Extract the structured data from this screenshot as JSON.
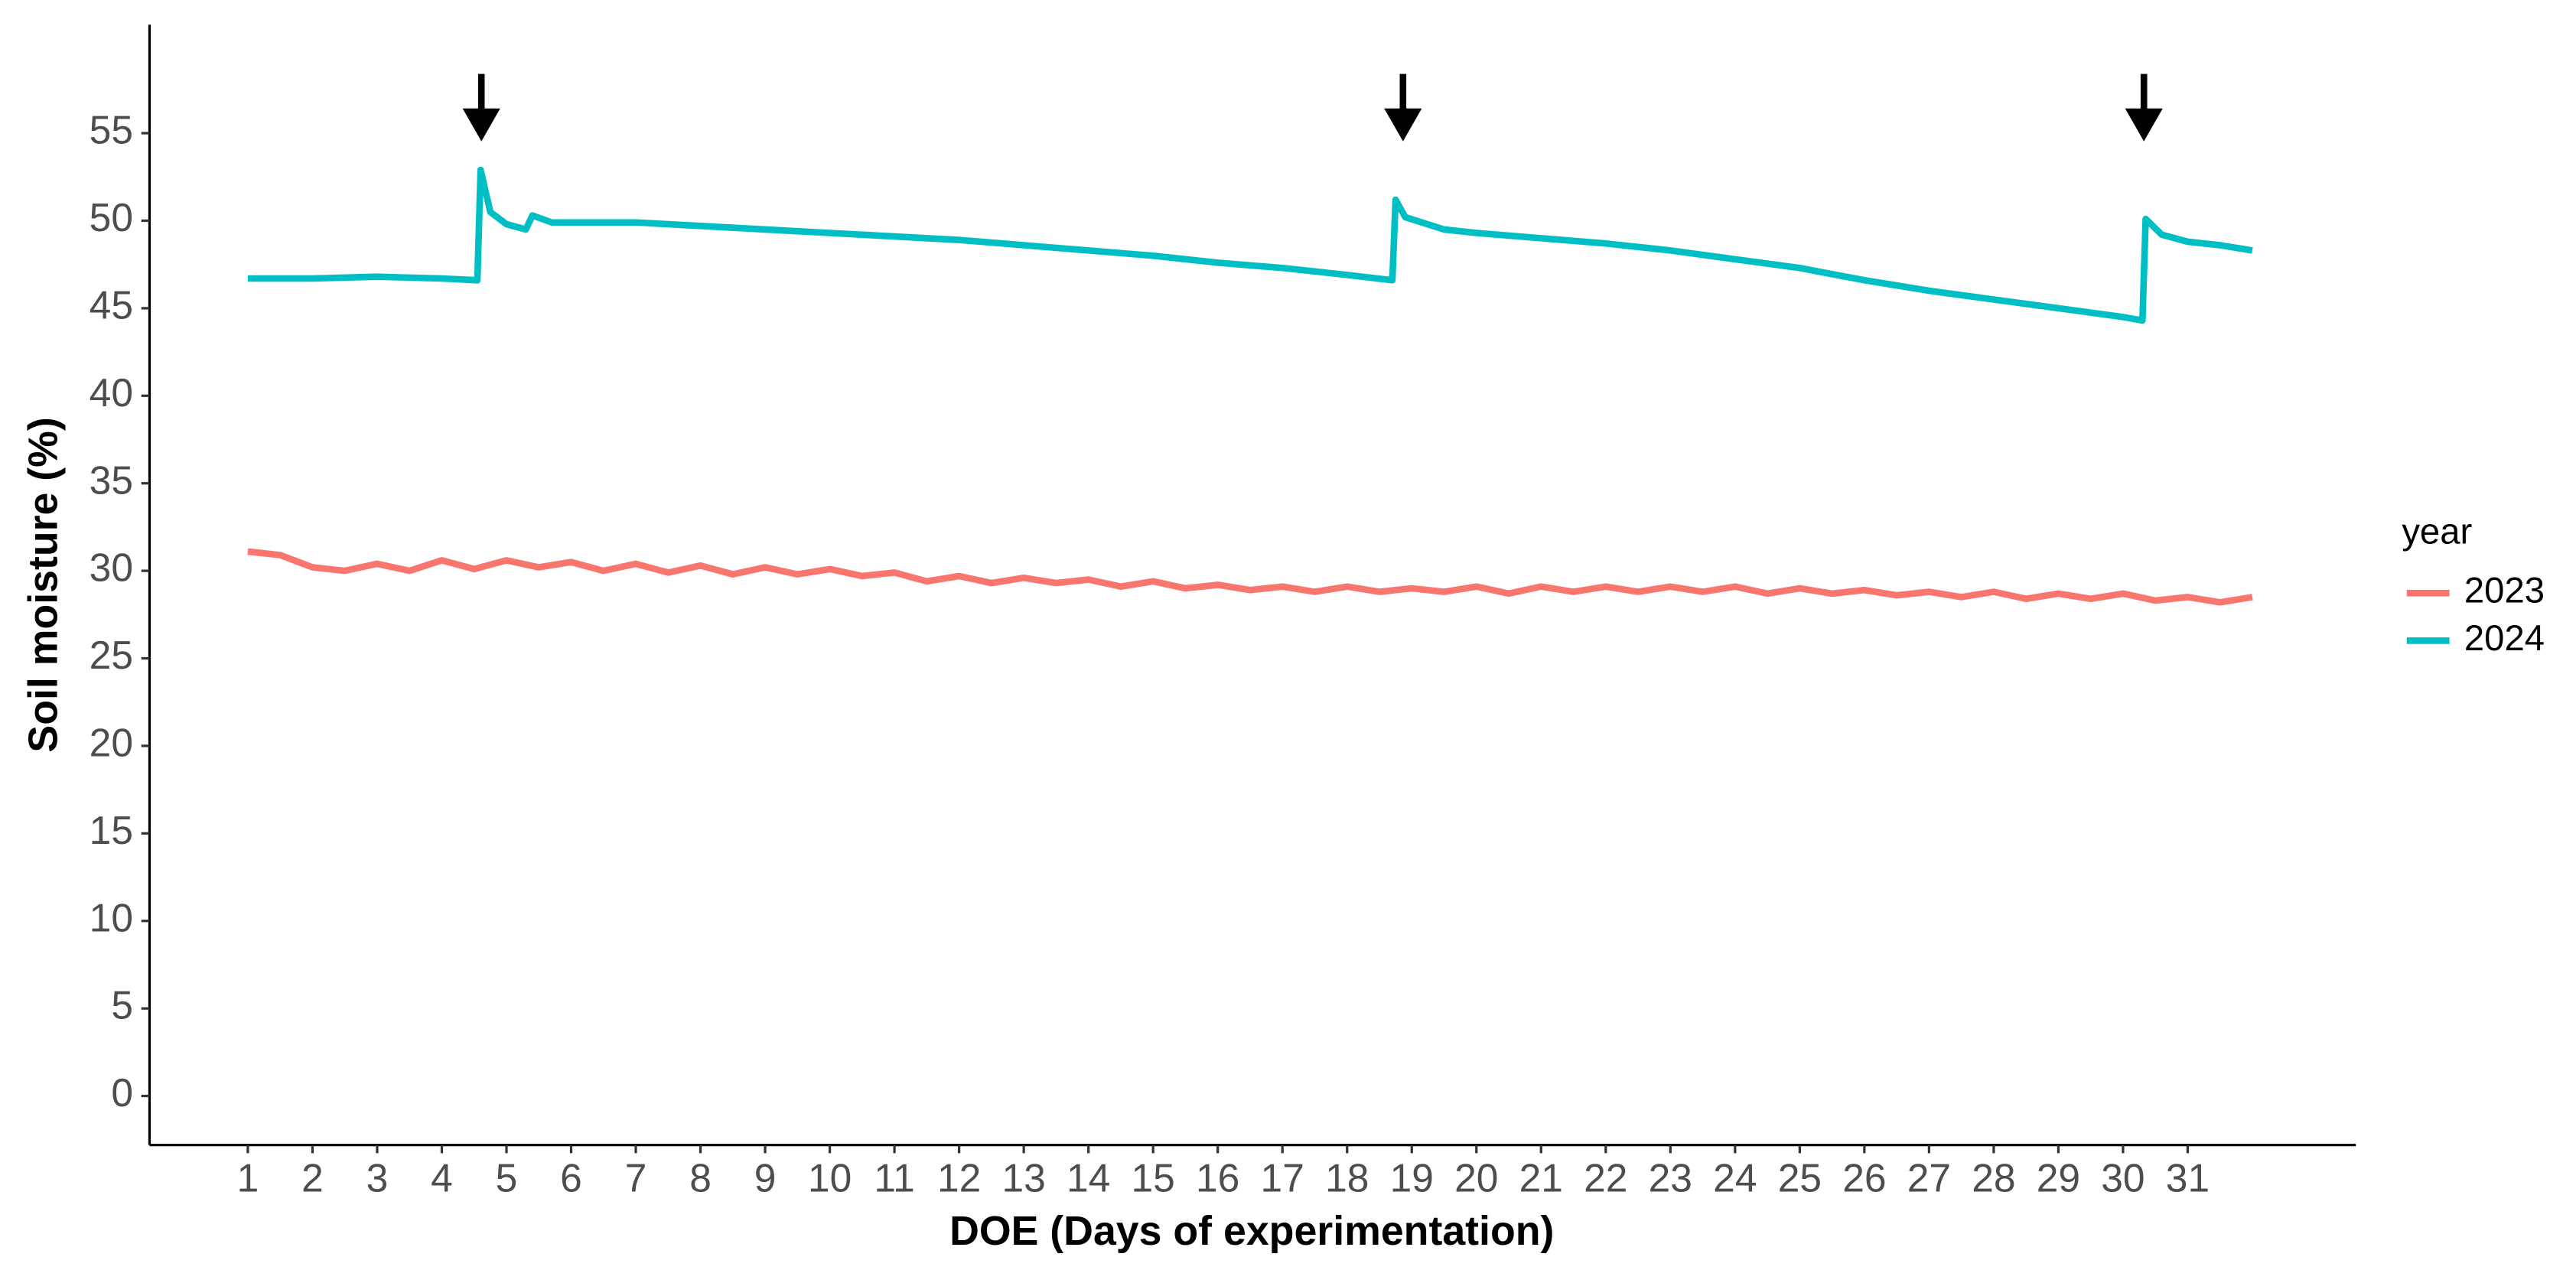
{
  "chart_data": {
    "type": "line",
    "x_label": "DOE (Days of experimentation)",
    "y_label": "Soil moisture (%)",
    "legend_title": "year",
    "legend_position": "right",
    "grid": false,
    "xlim": [
      -0.52,
      33.6
    ],
    "ylim": [
      -2.8,
      61.2
    ],
    "xticks": [
      1,
      2,
      3,
      4,
      5,
      6,
      7,
      8,
      9,
      10,
      11,
      12,
      13,
      14,
      15,
      16,
      17,
      18,
      19,
      20,
      21,
      22,
      23,
      24,
      25,
      26,
      27,
      28,
      29,
      30,
      31
    ],
    "yticks": [
      0,
      5,
      10,
      15,
      20,
      25,
      30,
      35,
      40,
      45,
      50,
      55
    ],
    "series": [
      {
        "name": "2023",
        "color": "#f8766d",
        "x": [
          1,
          1.5,
          2,
          2.5,
          3,
          3.5,
          4,
          4.5,
          5,
          5.5,
          6,
          6.5,
          7,
          7.5,
          8,
          8.5,
          9,
          9.5,
          10,
          10.5,
          11,
          11.5,
          12,
          12.5,
          13,
          13.5,
          14,
          14.5,
          15,
          15.5,
          16,
          16.5,
          17,
          17.5,
          18,
          18.5,
          19,
          19.5,
          20,
          20.5,
          21,
          21.5,
          22,
          22.5,
          23,
          23.5,
          24,
          24.5,
          25,
          25.5,
          26,
          26.5,
          27,
          27.5,
          28,
          28.5,
          29,
          29.5,
          30,
          30.5,
          31,
          31.5,
          32
        ],
        "values": [
          31.1,
          30.9,
          30.2,
          30.0,
          30.4,
          30.0,
          30.6,
          30.1,
          30.6,
          30.2,
          30.5,
          30.0,
          30.4,
          29.9,
          30.3,
          29.8,
          30.2,
          29.8,
          30.1,
          29.7,
          29.9,
          29.4,
          29.7,
          29.3,
          29.6,
          29.3,
          29.5,
          29.1,
          29.4,
          29.0,
          29.2,
          28.9,
          29.1,
          28.8,
          29.1,
          28.8,
          29.0,
          28.8,
          29.1,
          28.7,
          29.1,
          28.8,
          29.1,
          28.8,
          29.1,
          28.8,
          29.1,
          28.7,
          29.0,
          28.7,
          28.9,
          28.6,
          28.8,
          28.5,
          28.8,
          28.4,
          28.7,
          28.4,
          28.7,
          28.3,
          28.5,
          28.2,
          28.5
        ]
      },
      {
        "name": "2024",
        "color": "#00bfc4",
        "x": [
          1,
          2,
          3,
          4,
          4.55,
          4.6,
          4.75,
          5,
          5.3,
          5.4,
          5.7,
          7,
          8,
          9,
          10,
          11,
          12,
          13,
          14,
          15,
          16,
          17,
          18,
          18.7,
          18.75,
          18.9,
          19.5,
          20,
          21,
          22,
          23,
          24,
          25,
          26,
          27,
          28,
          29,
          30,
          30.3,
          30.35,
          30.6,
          31,
          31.5,
          32
        ],
        "values": [
          46.7,
          46.7,
          46.8,
          46.7,
          46.6,
          52.9,
          50.5,
          49.8,
          49.5,
          50.3,
          49.9,
          49.9,
          49.7,
          49.5,
          49.3,
          49.1,
          48.9,
          48.6,
          48.3,
          48.0,
          47.6,
          47.3,
          46.9,
          46.6,
          51.2,
          50.2,
          49.5,
          49.3,
          49.0,
          48.7,
          48.3,
          47.8,
          47.3,
          46.6,
          46.0,
          45.5,
          45.0,
          44.5,
          44.3,
          50.1,
          49.2,
          48.8,
          48.6,
          48.3
        ]
      }
    ]
  }
}
